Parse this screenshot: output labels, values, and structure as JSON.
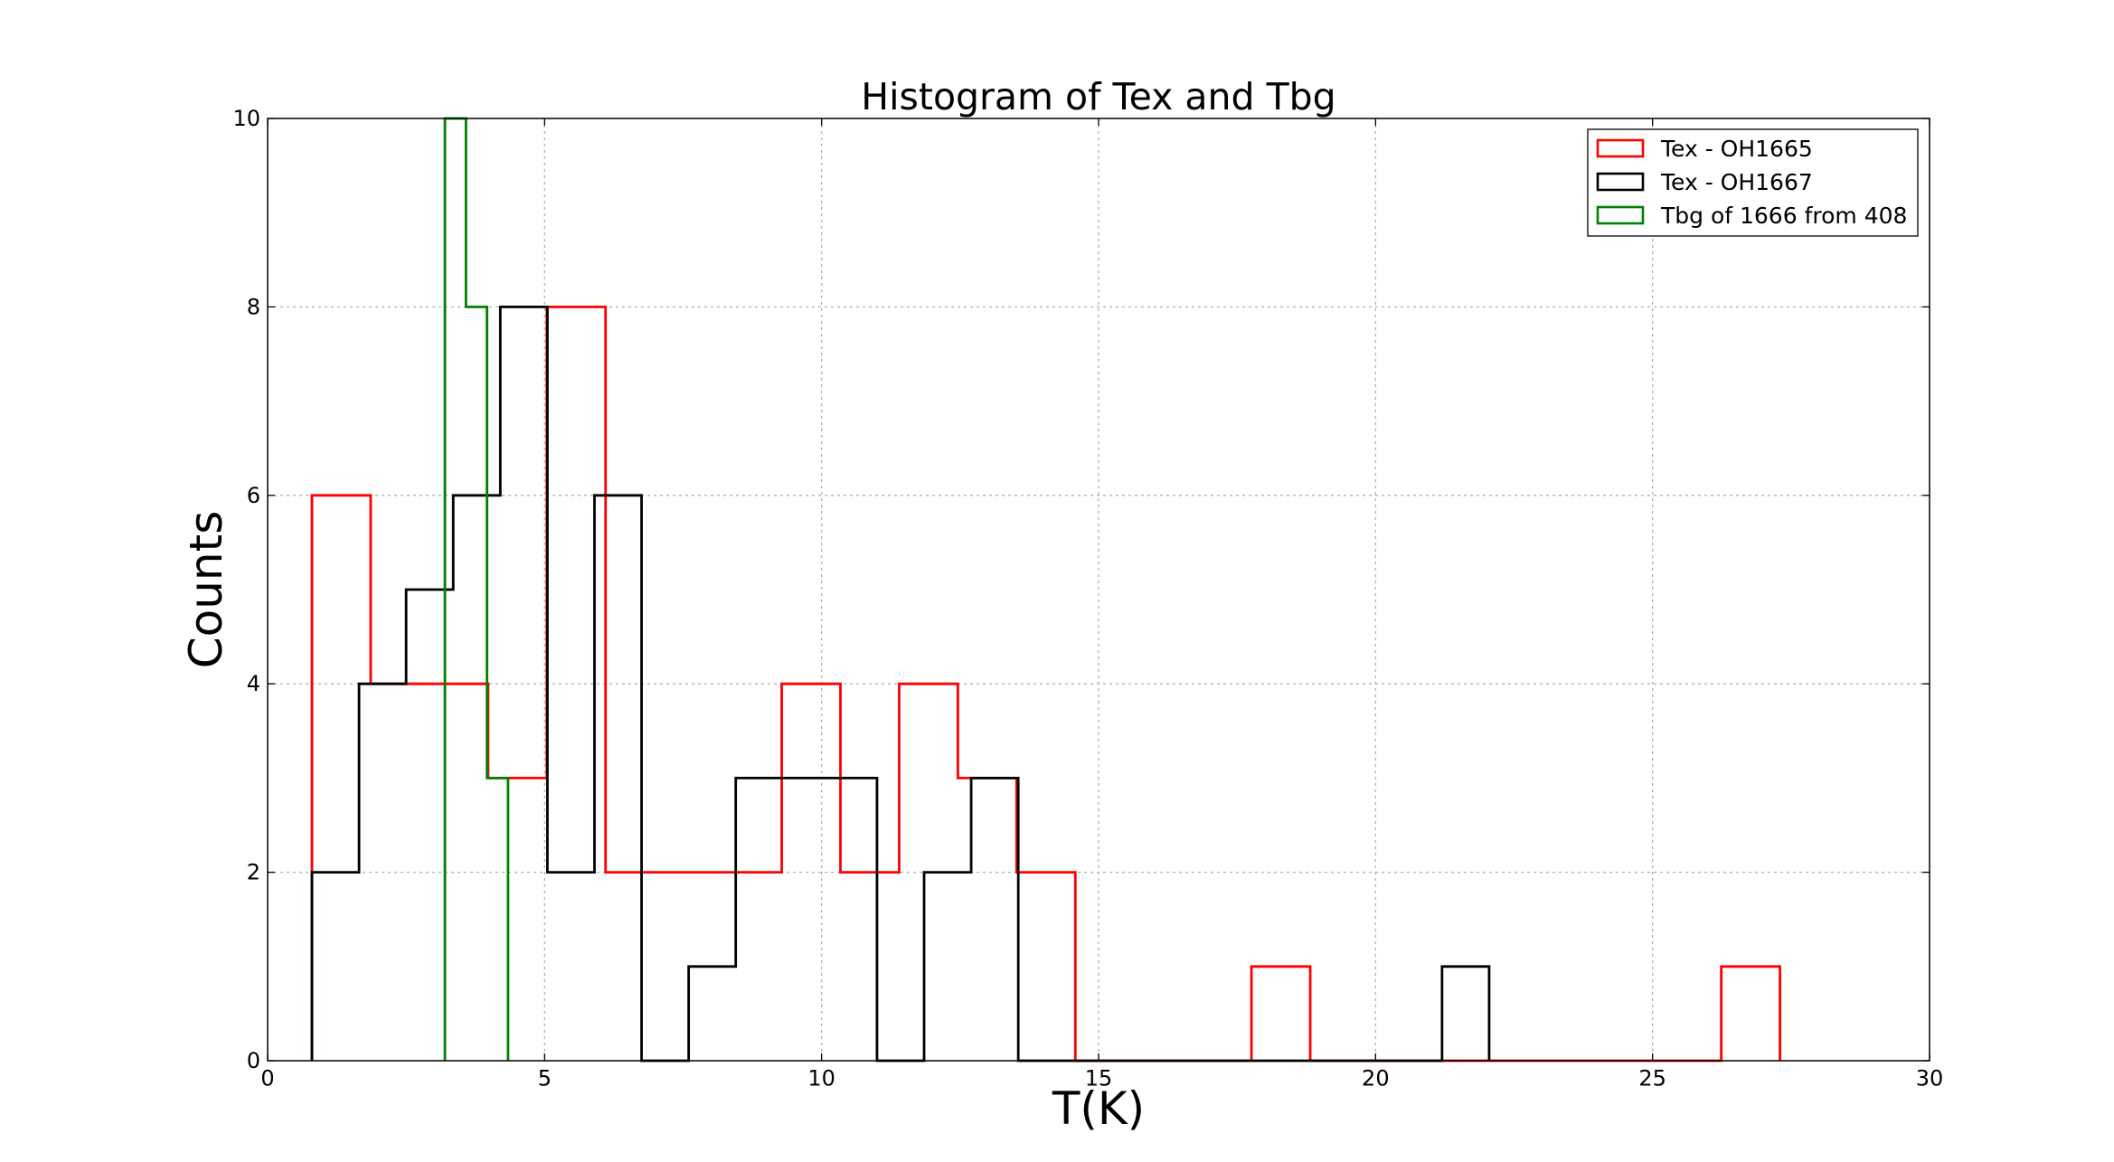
{
  "chart_data": {
    "type": "histogram",
    "title": "Histogram of Tex and Tbg",
    "xlabel": "T(K)",
    "ylabel": "Counts",
    "xlim": [
      0,
      30
    ],
    "ylim": [
      0,
      10
    ],
    "xticks": [
      0,
      5,
      10,
      15,
      20,
      25,
      30
    ],
    "yticks": [
      0,
      2,
      4,
      6,
      8,
      10
    ],
    "grid": true,
    "legend_position": "top-right",
    "colors": {
      "red": "#ff0000",
      "black": "#000000",
      "green": "#008000"
    },
    "series": [
      {
        "name": "Tex - OH1665",
        "color": "#ff0000",
        "edges": [
          0.8,
          1.86,
          2.92,
          3.98,
          5.04,
          6.1,
          7.16,
          8.22,
          9.28,
          10.34,
          11.4,
          12.46,
          13.52,
          14.58,
          15.64,
          16.7,
          17.76,
          18.82,
          19.88,
          20.94,
          22.0,
          23.06,
          24.12,
          25.18,
          26.24,
          27.3
        ],
        "counts": [
          6,
          4,
          4,
          3,
          8,
          2,
          2,
          2,
          4,
          2,
          4,
          3,
          2,
          0,
          0,
          0,
          1,
          0,
          0,
          0,
          0,
          0,
          0,
          0,
          1
        ]
      },
      {
        "name": "Tex - OH1667",
        "color": "#000000",
        "edges": [
          0.8,
          1.65,
          2.5,
          3.35,
          4.2,
          5.05,
          5.9,
          6.75,
          7.6,
          8.45,
          9.3,
          10.15,
          11.0,
          11.85,
          12.7,
          13.55,
          14.4,
          15.25,
          16.1,
          16.95,
          17.8,
          18.65,
          19.5,
          20.35,
          21.2,
          22.05
        ],
        "counts": [
          2,
          4,
          5,
          6,
          8,
          2,
          6,
          0,
          1,
          3,
          3,
          3,
          0,
          2,
          3,
          0,
          0,
          0,
          0,
          0,
          0,
          0,
          0,
          0,
          1
        ]
      },
      {
        "name": "Tbg of 1666 from 408",
        "color": "#008000",
        "edges": [
          3.2,
          3.58,
          3.96,
          4.34
        ],
        "counts": [
          10,
          8,
          3
        ],
        "overflow_top": true
      }
    ]
  }
}
